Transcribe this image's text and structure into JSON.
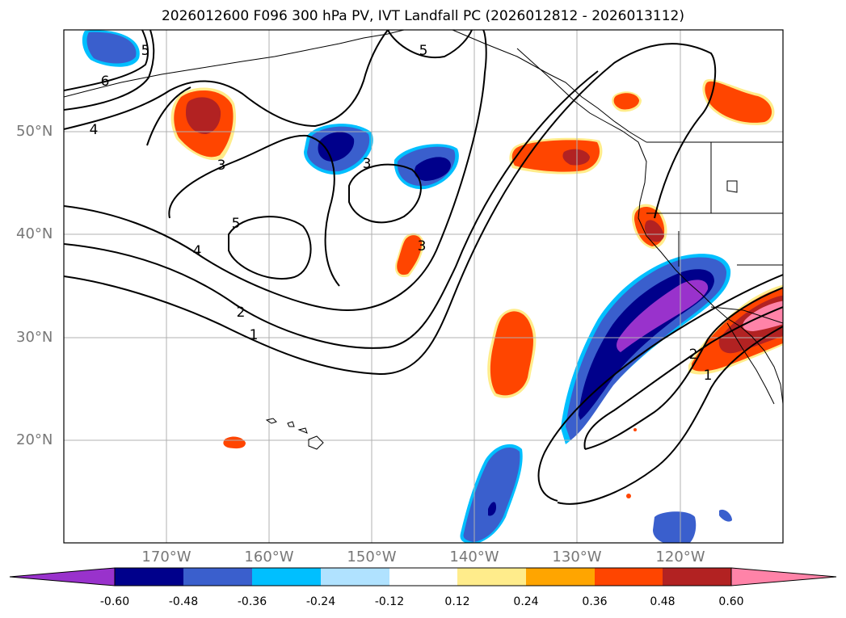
{
  "title": "2026012600 F096 300 hPa PV, IVT Landfall PC (2026012812 - 2026013112)",
  "lat_labels": [
    {
      "lat": 50,
      "text": "50°N"
    },
    {
      "lat": 40,
      "text": "40°N"
    },
    {
      "lat": 30,
      "text": "30°N"
    },
    {
      "lat": 20,
      "text": "20°N"
    }
  ],
  "lon_labels": [
    {
      "lon": -170,
      "text": "170°W"
    },
    {
      "lon": -160,
      "text": "160°W"
    },
    {
      "lon": -150,
      "text": "150°W"
    },
    {
      "lon": -140,
      "text": "140°W"
    },
    {
      "lon": -130,
      "text": "130°W"
    },
    {
      "lon": -120,
      "text": "120°W"
    }
  ],
  "contour_labels": [
    "5",
    "6",
    "4",
    "3",
    "3",
    "5",
    "4",
    "2",
    "1",
    "3",
    "5",
    "2",
    "1"
  ],
  "colorbar": {
    "levels": [
      "-0.60",
      "-0.48",
      "-0.36",
      "-0.24",
      "-0.12",
      "0.12",
      "0.24",
      "0.36",
      "0.48",
      "0.60"
    ],
    "colors": [
      "#9932cc",
      "#00008b",
      "#3a5fcd",
      "#00bfff",
      "#b0e2ff",
      "#ffffff",
      "#ffec8b",
      "#ffa500",
      "#ff4500",
      "#b22222",
      "#ff83a8"
    ]
  },
  "shading_colors": {
    "neg_outer": "#00bfff",
    "neg_mid": "#3a5fcd",
    "neg_strong": "#00008b",
    "neg_extreme": "#9932cc",
    "pos_outer": "#ffec8b",
    "pos_mid": "#ff4500",
    "pos_strong": "#b22222",
    "pos_extreme": "#ff83a8"
  }
}
